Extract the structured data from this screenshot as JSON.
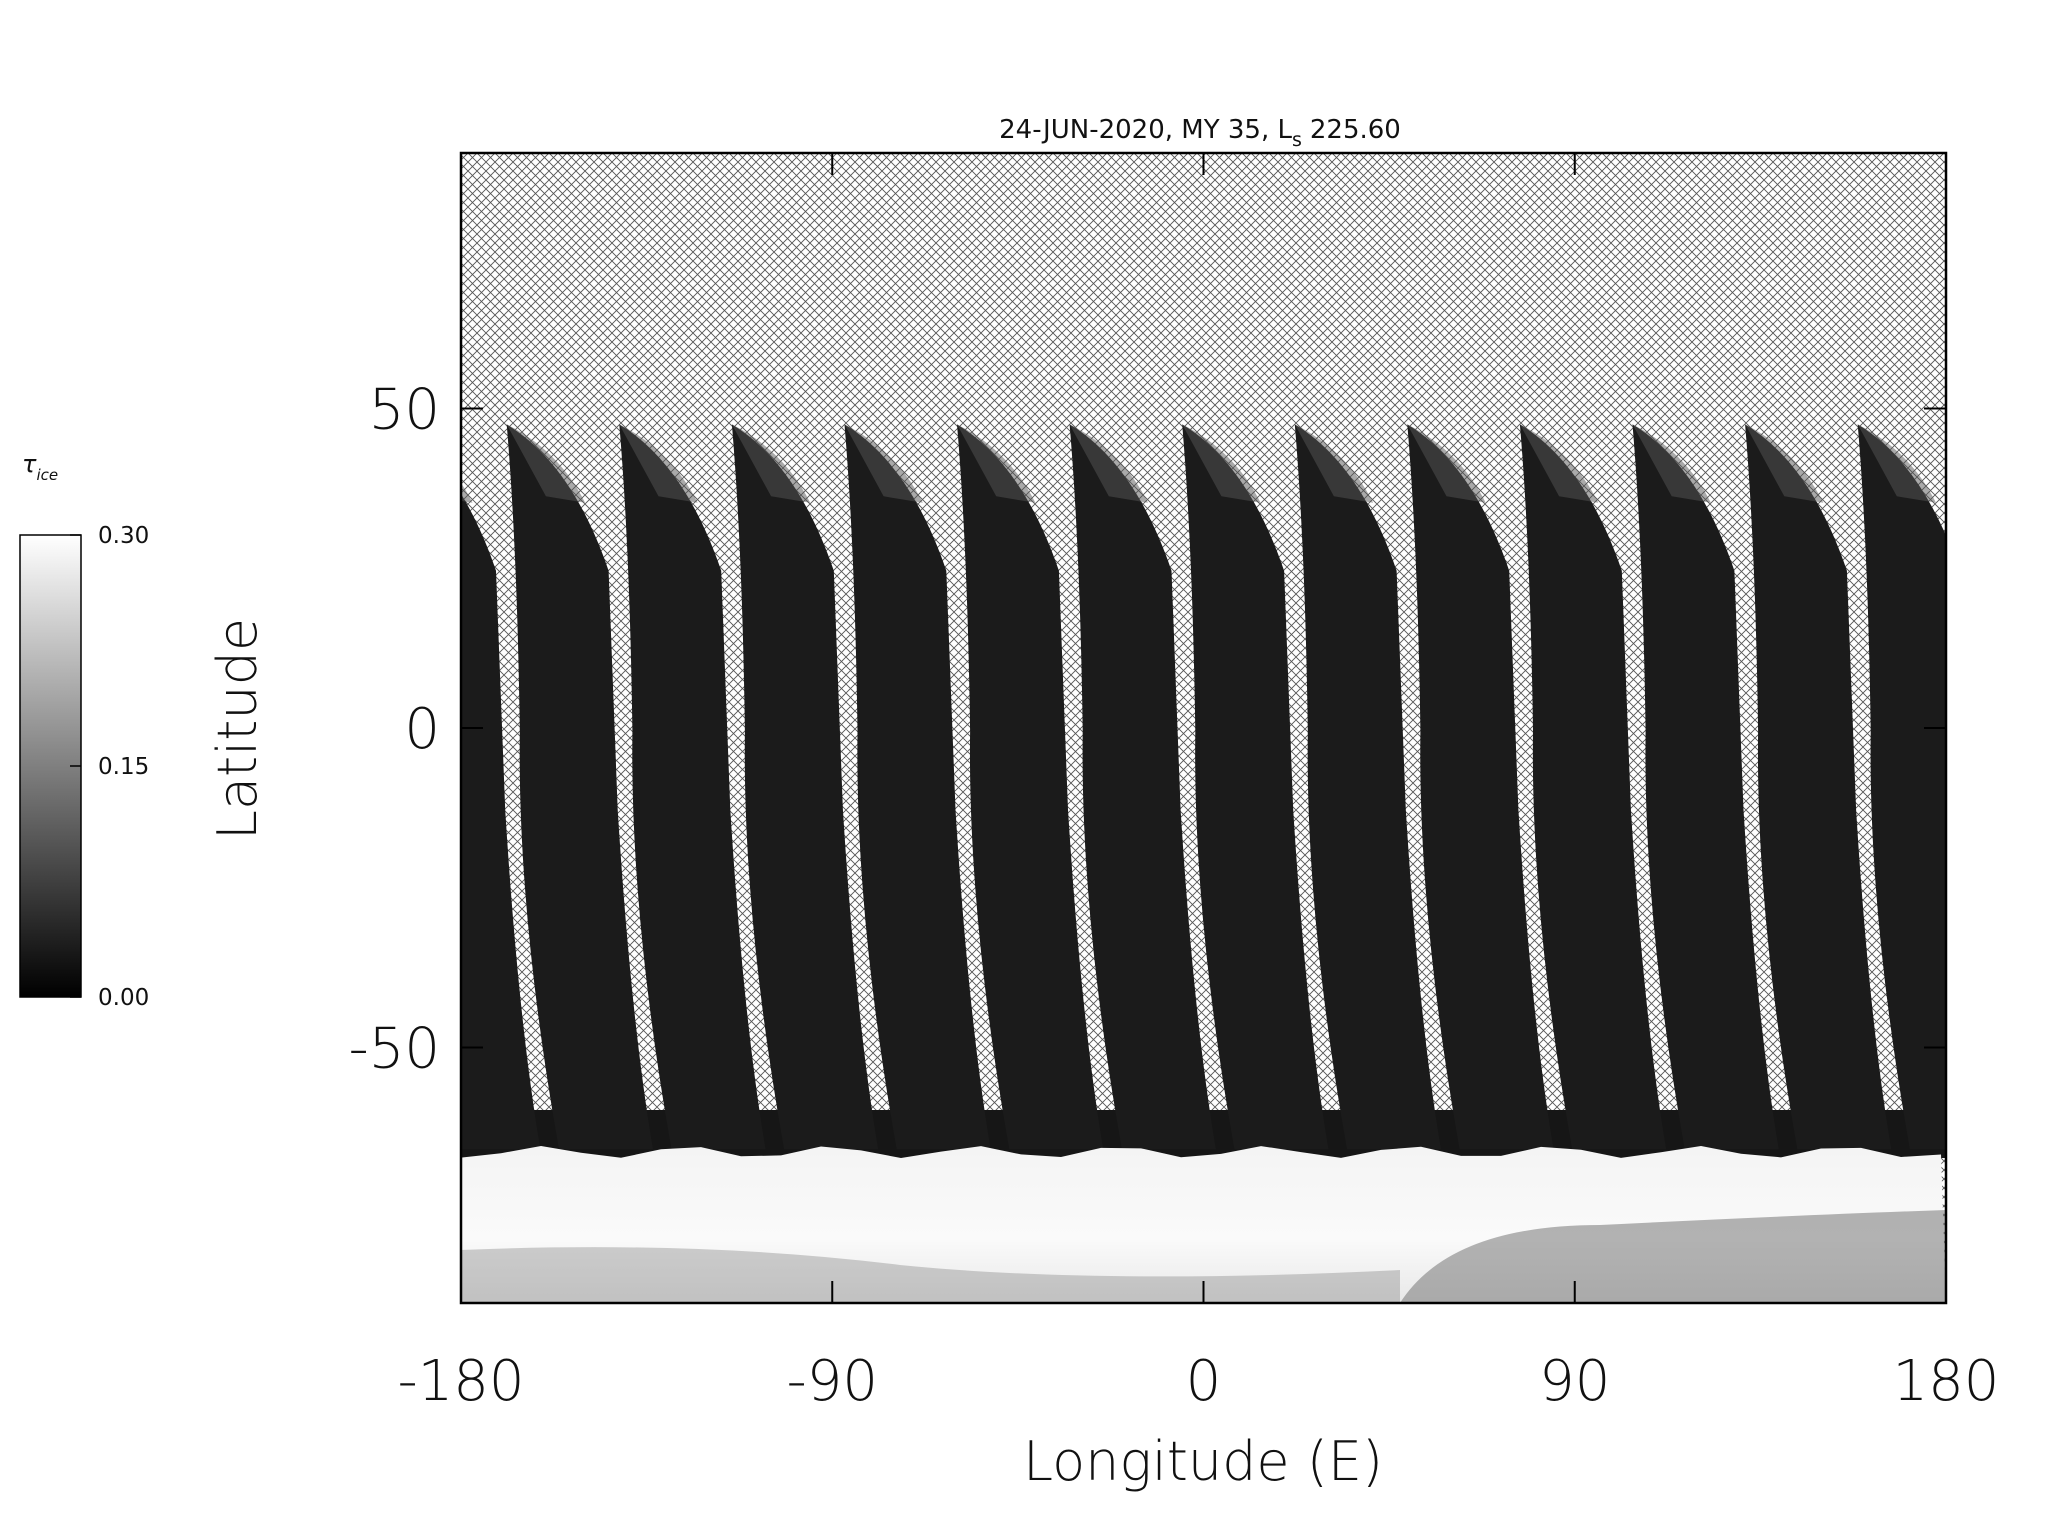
{
  "chart_data": {
    "type": "map",
    "title": {
      "text": "24-JUN-2020, MY 35,  L",
      "subscript": "s",
      "suffix": "225.60"
    },
    "xlabel": "Longitude (E)",
    "ylabel": "Latitude",
    "xlim": [
      -180,
      180
    ],
    "ylim": [
      -90,
      90
    ],
    "xticks": [
      -180,
      -90,
      0,
      90,
      180
    ],
    "yticks": [
      -50,
      0,
      50
    ],
    "colorbar": {
      "label": "τ",
      "label_subscript": "ice",
      "lim": [
        0,
        0.3
      ],
      "ticks": [
        {
          "value": 0,
          "label": "0.00"
        },
        {
          "value": 0.15,
          "label": "0.15"
        },
        {
          "value": 0.3,
          "label": "0.30"
        }
      ]
    }
  }
}
